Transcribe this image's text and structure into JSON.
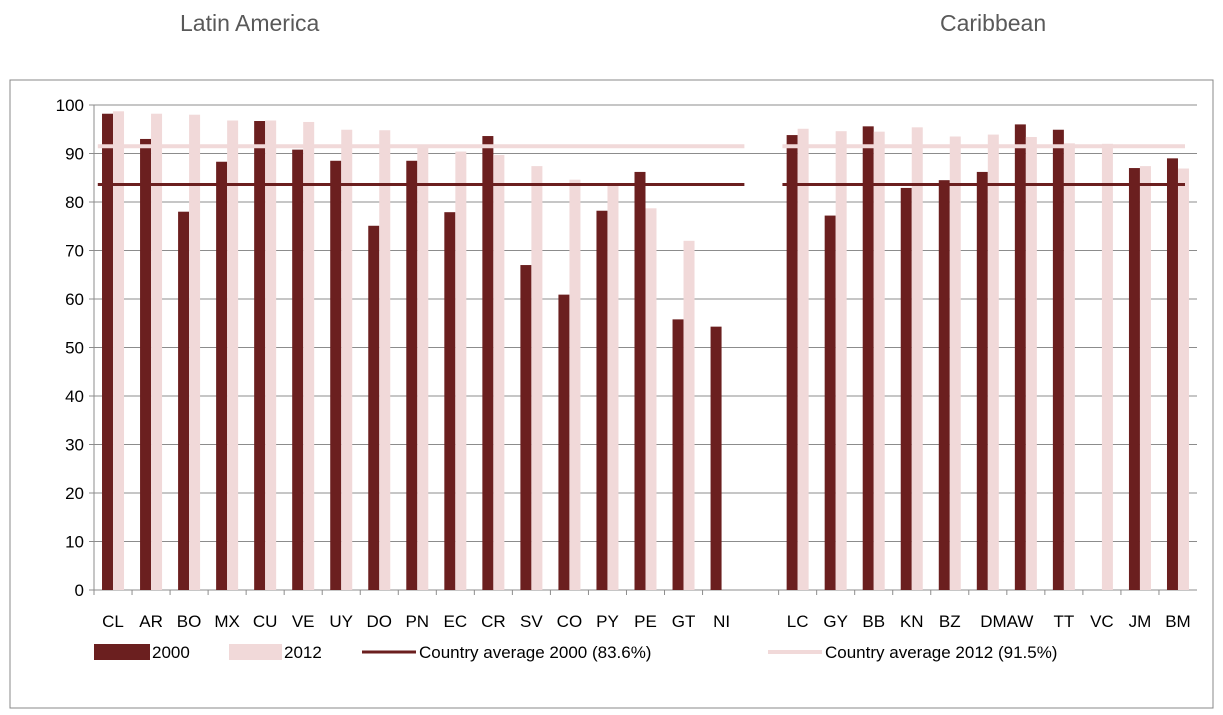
{
  "region_titles": {
    "left": "Latin America",
    "right": "Caribbean"
  },
  "chart_data": {
    "type": "bar",
    "ylim": [
      0,
      100
    ],
    "yticks": [
      0,
      10,
      20,
      30,
      40,
      50,
      60,
      70,
      80,
      90,
      100
    ],
    "grid": true,
    "legend_placement": "bottom",
    "groups": [
      {
        "name": "Latin America",
        "categories": [
          "CL",
          "AR",
          "BO",
          "MX",
          "CU",
          "VE",
          "UY",
          "DO",
          "PN",
          "EC",
          "CR",
          "SV",
          "CO",
          "PY",
          "PE",
          "GT",
          "NI"
        ],
        "values_2000": [
          98.2,
          93.0,
          78.0,
          88.3,
          96.7,
          90.8,
          88.5,
          75.1,
          88.5,
          77.9,
          93.6,
          67.0,
          60.9,
          78.2,
          86.2,
          55.8,
          54.3
        ],
        "values_2012": [
          98.7,
          98.2,
          98.0,
          96.8,
          96.8,
          96.5,
          94.9,
          94.8,
          91.8,
          90.4,
          89.7,
          87.4,
          84.6,
          83.6,
          78.7,
          72.0,
          null
        ]
      },
      {
        "name": "Caribbean",
        "categories": [
          "LC",
          "GY",
          "BB",
          "KN",
          "BZ",
          "DMA",
          "AW",
          "TT",
          "VC",
          "JM",
          "BM"
        ],
        "tick_labels": [
          "LC",
          "GY",
          "BB",
          "KN",
          "BZ",
          "DMAW",
          "TT",
          "VC",
          "JM",
          "BM"
        ],
        "values_2000": [
          93.8,
          77.2,
          95.6,
          82.9,
          84.5,
          86.2,
          96.0,
          94.9,
          null,
          87.0,
          89.0
        ],
        "values_2012": [
          95.1,
          94.6,
          94.5,
          95.4,
          93.5,
          93.9,
          93.4,
          92.1,
          92.0,
          87.4,
          86.9
        ]
      }
    ],
    "series": [
      {
        "name": "2000",
        "color": "#6b1f1f"
      },
      {
        "name": "2012",
        "color": "#f1d9d9"
      }
    ],
    "reference_lines": [
      {
        "name": "Country average 2000 (83.6%)",
        "value": 83.6,
        "color": "#6b1f1f"
      },
      {
        "name": "Country average 2012 (91.5%)",
        "value": 91.5,
        "color": "#f1d9d9"
      }
    ],
    "legend": [
      "2000",
      "2012",
      "Country average 2000 (83.6%)",
      "Country average 2012 (91.5%)"
    ]
  }
}
